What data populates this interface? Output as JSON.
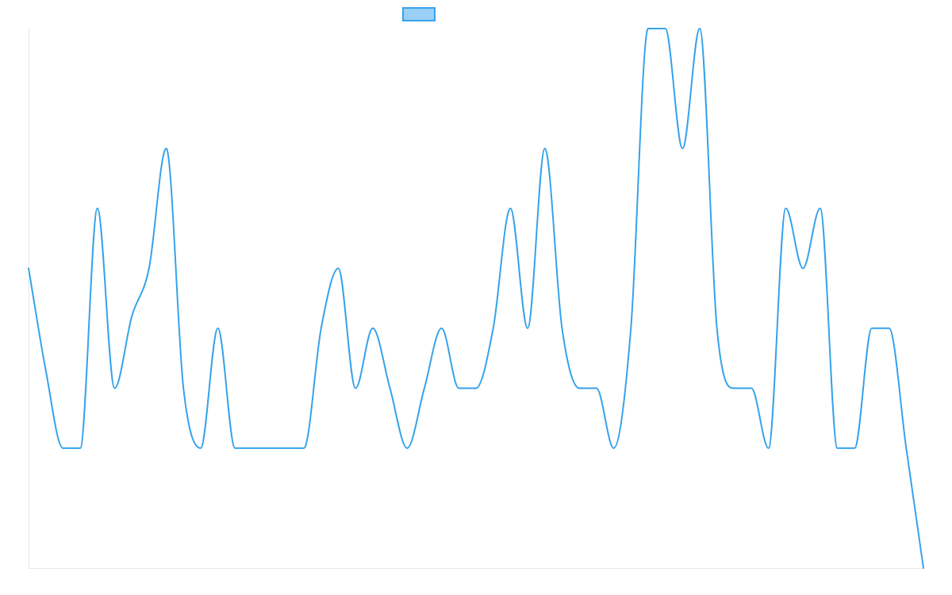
{
  "chart_data": {
    "type": "line",
    "title": "",
    "xlabel": "",
    "ylabel": "",
    "grid": false,
    "legend": "top-center",
    "smooth": true,
    "colors": {
      "line": "#36a2eb",
      "legend_fill": "#9ad0f5",
      "axis": "#e5e5e5"
    },
    "ylim": [
      0,
      9
    ],
    "series": [
      {
        "values": [
          5,
          3.3,
          2,
          2,
          6,
          3,
          4.2,
          5,
          7,
          3,
          2,
          4,
          2,
          2,
          2,
          2,
          2,
          4,
          5,
          3,
          4,
          3,
          2,
          3,
          4,
          3,
          3,
          4,
          6,
          4,
          7,
          4,
          3,
          3,
          2,
          4,
          9,
          9,
          7,
          9,
          4,
          3,
          3,
          2,
          6,
          5,
          6,
          2,
          2,
          4,
          4,
          2,
          0
        ]
      }
    ]
  }
}
